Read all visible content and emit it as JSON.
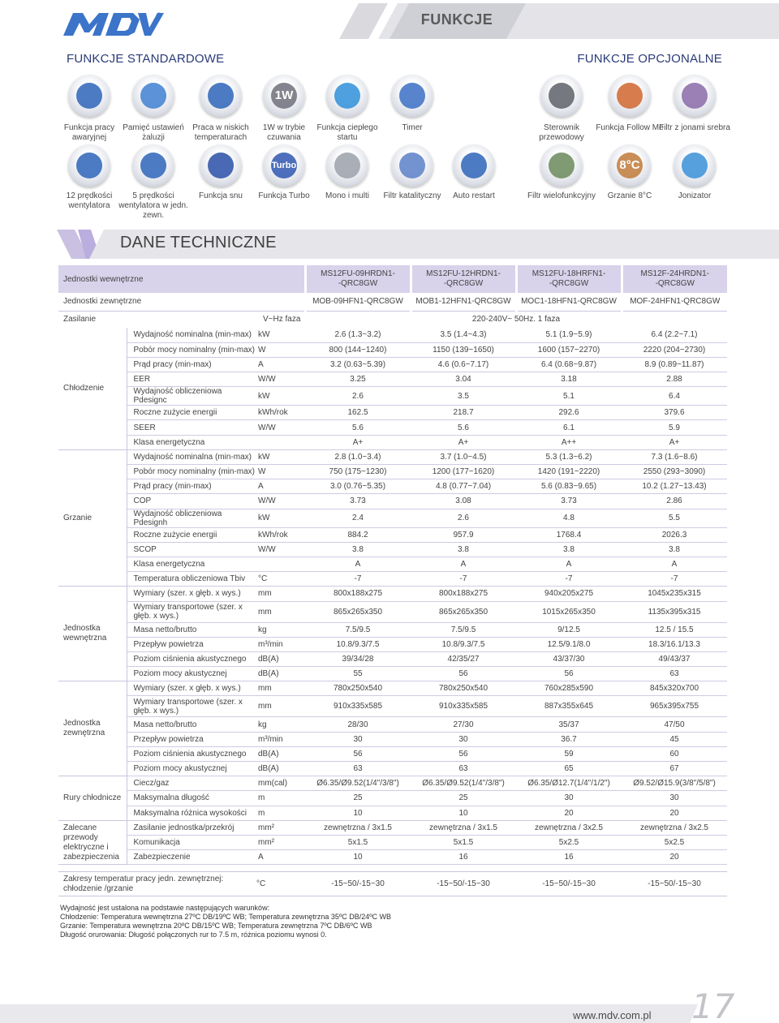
{
  "header": {
    "logo_text": "MDV",
    "title": "FUNKCJE"
  },
  "sections": {
    "standard": "FUNKCJE STANDARDOWE",
    "optional": "FUNKCJE OPCJONALNE"
  },
  "features_row1": [
    {
      "icon": "emergency-icon",
      "label": "Funkcja pracy awaryjnej",
      "color": "#2e64b8"
    },
    {
      "icon": "louver-memory-icon",
      "label": "Pamięć ustawień żaluzji",
      "color": "#3f7fd0"
    },
    {
      "icon": "low-temp-icon",
      "label": "Praca w niskich temperaturach",
      "color": "#2e64b8"
    },
    {
      "icon": "standby-1w-icon",
      "label": "1W w trybie czuwania",
      "symbol": "1W",
      "color": "#6d6f7a"
    },
    {
      "icon": "warm-start-icon",
      "label": "Funkcja ciepłego startu",
      "color": "#2f8fd8"
    },
    {
      "icon": "timer-icon",
      "label": "Timer",
      "color": "#3a6fc4"
    },
    {
      "icon": "wired-controller-icon",
      "label": "Sterownik przewodowy",
      "color": "#5e6068"
    },
    {
      "icon": "follow-me-icon",
      "label": "Funkcja Follow Me",
      "color": "#d0662e"
    },
    {
      "icon": "silver-ion-filter-icon",
      "label": "Filtr z jonami srebra",
      "color": "#8a6aa8"
    }
  ],
  "features_row2": [
    {
      "icon": "fan-speed-12-icon",
      "label": "12 prędkości wentylatora",
      "color": "#2e64b8"
    },
    {
      "icon": "fan-speed-5-icon",
      "label": "5 prędkości wentylatora w jedn. zewn.",
      "color": "#2e64b8"
    },
    {
      "icon": "sleep-icon",
      "label": "Funkcja snu",
      "color": "#2a4fa8"
    },
    {
      "icon": "turbo-icon",
      "label": "Funkcja Turbo",
      "symbol": "Turbo",
      "color": "#2e56b0"
    },
    {
      "icon": "mono-multi-icon",
      "label": "Mono i multi",
      "color": "#9aa0aa"
    },
    {
      "icon": "catalytic-filter-icon",
      "label": "Filtr katalityczny",
      "color": "#5b7fc8"
    },
    {
      "icon": "auto-restart-icon",
      "label": "Auto restart",
      "color": "#2e64b8"
    },
    {
      "icon": "multi-filter-icon",
      "label": "Filtr wielofunkcyjny",
      "color": "#6a8a5a"
    },
    {
      "icon": "heating-8c-icon",
      "label": "Grzanie 8°C",
      "symbol": "8°C",
      "color": "#c07a3a"
    },
    {
      "icon": "ionizer-icon",
      "label": "Jonizator",
      "color": "#3a8fd8"
    }
  ],
  "tech_title": "DANE TECHNICZNE",
  "head": {
    "indoor_label": "Jednostki wewnętrzne",
    "outdoor_label": "Jednostki zewnętrzne",
    "indoor_models": [
      [
        "MS12FU-09HRDN1-",
        "-QRC8GW"
      ],
      [
        "MS12FU-12HRDN1-",
        "-QRC8GW"
      ],
      [
        "MS12FU-18HRFN1-",
        "-QRC8GW"
      ],
      [
        "MS12F-24HRDN1-",
        "-QRC8GW"
      ]
    ],
    "outdoor_models": [
      "MOB-09HFN1-QRC8GW",
      "MOB1-12HFN1-QRC8GW",
      "MOC1-18HFN1-QRC8GW",
      "MOF-24HFN1-QRC8GW"
    ],
    "power_label": "Zasilanie",
    "power_unit": "V~Hz faza",
    "power_value": "220-240V~ 50Hz. 1 faza"
  },
  "groups": [
    {
      "name": "Chłodzenie",
      "rows": [
        {
          "param": "Wydajność nominalna (min-max)",
          "unit": "kW",
          "v": [
            "2.6 (1.3~3.2)",
            "3.5 (1.4~4.3)",
            "5.1 (1.9~5.9)",
            "6.4 (2.2~7.1)"
          ]
        },
        {
          "param": "Pobór mocy nominalny (min-max)",
          "unit": "W",
          "v": [
            "800 (144~1240)",
            "1150 (139~1650)",
            "1600 (157~2270)",
            "2220 (204~2730)"
          ]
        },
        {
          "param": "Prąd pracy (min-max)",
          "unit": "A",
          "v": [
            "3.2 (0.63~5.39)",
            "4.6 (0.6~7.17)",
            "6.4 (0.68~9.87)",
            "8.9 (0.89~11.87)"
          ]
        },
        {
          "param": "EER",
          "unit": "W/W",
          "v": [
            "3.25",
            "3.04",
            "3.18",
            "2.88"
          ]
        },
        {
          "param": "Wydajność obliczeniowa Pdesignc",
          "unit": "kW",
          "v": [
            "2.6",
            "3.5",
            "5.1",
            "6.4"
          ]
        },
        {
          "param": "Roczne zużycie energii",
          "unit": "kWh/rok",
          "v": [
            "162.5",
            "218.7",
            "292.6",
            "379.6"
          ]
        },
        {
          "param": "SEER",
          "unit": "W/W",
          "v": [
            "5.6",
            "5.6",
            "6.1",
            "5.9"
          ]
        },
        {
          "param": "Klasa energetyczna",
          "unit": "",
          "v": [
            "A+",
            "A+",
            "A++",
            "A+"
          ]
        }
      ]
    },
    {
      "name": "Grzanie",
      "rows": [
        {
          "param": "Wydajność nominalna (min-max)",
          "unit": "kW",
          "v": [
            "2.8 (1.0~3.4)",
            "3.7 (1.0~4.5)",
            "5.3 (1.3~6.2)",
            "7.3 (1.6~8.6)"
          ]
        },
        {
          "param": "Pobór mocy nominalny (min-max)",
          "unit": "W",
          "v": [
            "750 (175~1230)",
            "1200 (177~1620)",
            "1420 (191~2220)",
            "2550 (293~3090)"
          ]
        },
        {
          "param": "Prąd pracy (min-max)",
          "unit": "A",
          "v": [
            "3.0 (0.76~5.35)",
            "4.8 (0.77~7.04)",
            "5.6 (0.83~9.65)",
            "10.2 (1.27~13.43)"
          ]
        },
        {
          "param": "COP",
          "unit": "W/W",
          "v": [
            "3.73",
            "3.08",
            "3.73",
            "2.86"
          ]
        },
        {
          "param": "Wydajność obliczeniowa Pdesignh",
          "unit": "kW",
          "v": [
            "2.4",
            "2.6",
            "4.8",
            "5.5"
          ]
        },
        {
          "param": "Roczne zużycie energii",
          "unit": "kWh/rok",
          "v": [
            "884.2",
            "957.9",
            "1768.4",
            "2026.3"
          ]
        },
        {
          "param": "SCOP",
          "unit": "W/W",
          "v": [
            "3.8",
            "3.8",
            "3.8",
            "3.8"
          ]
        },
        {
          "param": "Klasa energetyczna",
          "unit": "",
          "v": [
            "A",
            "A",
            "A",
            "A"
          ]
        },
        {
          "param": "Temperatura obliczeniowa Tbiv",
          "unit": "°C",
          "v": [
            "-7",
            "-7",
            "-7",
            "-7"
          ]
        }
      ]
    },
    {
      "name": "Jednostka wewnętrzna",
      "rows": [
        {
          "param": "Wymiary (szer. x głęb. x wys.)",
          "unit": "mm",
          "v": [
            "800x188x275",
            "800x188x275",
            "940x205x275",
            "1045x235x315"
          ]
        },
        {
          "param": "Wymiary transportowe (szer. x głęb. x wys.)",
          "unit": "mm",
          "v": [
            "865x265x350",
            "865x265x350",
            "1015x265x350",
            "1135x395x315"
          ],
          "tall": true
        },
        {
          "param": "Masa netto/brutto",
          "unit": "kg",
          "v": [
            "7.5/9.5",
            "7.5/9.5",
            "9/12.5",
            "12.5 / 15.5"
          ]
        },
        {
          "param": "Przepływ powietrza",
          "unit": "m³/min",
          "v": [
            "10.8/9.3/7.5",
            "10.8/9.3/7.5",
            "12.5/9.1/8.0",
            "18.3/16.1/13.3"
          ]
        },
        {
          "param": "Poziom ciśnienia akustycznego",
          "unit": "dB(A)",
          "v": [
            "39/34/28",
            "42/35/27",
            "43/37/30",
            "49/43/37"
          ]
        },
        {
          "param": "Poziom mocy akustycznej",
          "unit": "dB(A)",
          "v": [
            "55",
            "56",
            "56",
            "63"
          ]
        }
      ]
    },
    {
      "name": "Jednostka zewnętrzna",
      "rows": [
        {
          "param": "Wymiary (szer. x głęb. x wys.)",
          "unit": "mm",
          "v": [
            "780x250x540",
            "780x250x540",
            "760x285x590",
            "845x320x700"
          ]
        },
        {
          "param": "Wymiary transportowe (szer. x głęb. x wys.)",
          "unit": "mm",
          "v": [
            "910x335x585",
            "910x335x585",
            "887x355x645",
            "965x395x755"
          ],
          "tall": true
        },
        {
          "param": "Masa netto/brutto",
          "unit": "kg",
          "v": [
            "28/30",
            "27/30",
            "35/37",
            "47/50"
          ]
        },
        {
          "param": "Przepływ powietrza",
          "unit": "m³/min",
          "v": [
            "30",
            "30",
            "36.7",
            "45"
          ]
        },
        {
          "param": "Poziom ciśnienia akustycznego",
          "unit": "dB(A)",
          "v": [
            "56",
            "56",
            "59",
            "60"
          ]
        },
        {
          "param": "Poziom mocy akustycznej",
          "unit": "dB(A)",
          "v": [
            "63",
            "63",
            "65",
            "67"
          ]
        }
      ]
    },
    {
      "name": "Rury chłodnicze",
      "rows": [
        {
          "param": "Ciecz/gaz",
          "unit": "mm(cal)",
          "v": [
            "Ø6.35/Ø9.52(1/4\"/3/8\")",
            "Ø6.35/Ø9.52(1/4\"/3/8\")",
            "Ø6.35/Ø12.7(1/4\"/1/2\")",
            "Ø9.52/Ø15.9(3/8\"/5/8\")"
          ]
        },
        {
          "param": "Maksymalna długość",
          "unit": "m",
          "v": [
            "25",
            "25",
            "30",
            "30"
          ]
        },
        {
          "param": "Maksymalna różnica wysokości",
          "unit": "m",
          "v": [
            "10",
            "10",
            "20",
            "20"
          ]
        }
      ]
    },
    {
      "name": "Zalecane przewody elektryczne i zabezpieczenia",
      "rows": [
        {
          "param": "Zasilanie jednostka/przekrój",
          "unit": "mm²",
          "v": [
            "zewnętrzna / 3x1.5",
            "zewnętrzna / 3x1.5",
            "zewnętrzna / 3x2.5",
            "zewnętrzna / 3x2.5"
          ]
        },
        {
          "param": "Komunikacja",
          "unit": "mm²",
          "v": [
            "5x1.5",
            "5x1.5",
            "5x2.5",
            "5x2.5"
          ]
        },
        {
          "param": "Zabezpieczenie",
          "unit": "A",
          "v": [
            "10",
            "16",
            "16",
            "20"
          ]
        }
      ]
    }
  ],
  "range": {
    "label": "Zakresy temperatur pracy jedn. zewnętrznej: chłodzenie /grzanie",
    "unit": "°C",
    "v": [
      "-15~50/-15~30",
      "-15~50/-15~30",
      "-15~50/-15~30",
      "-15~50/-15~30"
    ]
  },
  "notes": [
    "Wydajność jest ustalona na podstawie następujących warunków:",
    "Chłodzenie: Temperatura wewnętrzna 27ºC DB/19ºC WB; Temperatura zewnętrzna 35ºC DB/24ºC WB",
    "Grzanie: Temperatura wewnętrzna 20ºC  DB/15ºC WB; Temperatura zewnętrzna 7ºC  DB/6ºC WB",
    "Długość orurowania: Długość połączonych rur to 7.5 m, różnica poziomu wynosi 0."
  ],
  "footer": {
    "url": "www.mdv.com.pl",
    "page": "17"
  }
}
